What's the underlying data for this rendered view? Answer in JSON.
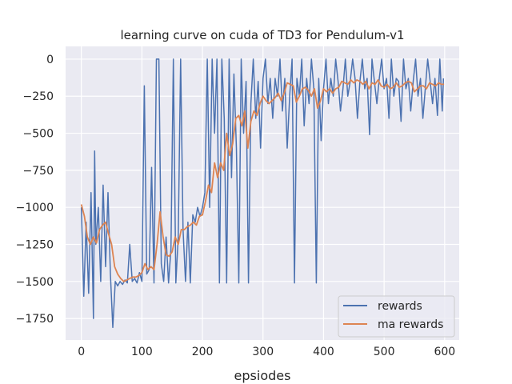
{
  "chart_data": {
    "type": "line",
    "title": "learning curve on cuda of TD3 for Pendulum-v1",
    "xlabel": "epsiodes",
    "ylabel": "",
    "xlim": [
      -26,
      624
    ],
    "ylim": [
      -1895,
      86
    ],
    "xticks": [
      0,
      100,
      200,
      300,
      400,
      500,
      600
    ],
    "yticks": [
      0,
      -250,
      -500,
      -750,
      -1000,
      -1250,
      -1500,
      -1750
    ],
    "grid": true,
    "legend": "bottom-right",
    "series": [
      {
        "name": "rewards",
        "color": "#4c72b0",
        "x": [
          0,
          4,
          8,
          12,
          16,
          20,
          22,
          24,
          28,
          32,
          36,
          40,
          44,
          48,
          52,
          56,
          60,
          64,
          68,
          72,
          76,
          80,
          84,
          88,
          92,
          96,
          100,
          104,
          108,
          112,
          116,
          120,
          124,
          128,
          132,
          136,
          140,
          144,
          148,
          152,
          156,
          160,
          164,
          168,
          172,
          176,
          180,
          184,
          188,
          192,
          196,
          200,
          204,
          208,
          212,
          216,
          220,
          224,
          228,
          232,
          236,
          240,
          244,
          248,
          252,
          256,
          260,
          264,
          268,
          272,
          276,
          280,
          284,
          288,
          292,
          296,
          300,
          304,
          308,
          312,
          316,
          320,
          324,
          328,
          332,
          336,
          340,
          344,
          348,
          352,
          356,
          360,
          364,
          368,
          372,
          376,
          380,
          384,
          388,
          392,
          396,
          400,
          404,
          408,
          412,
          416,
          420,
          424,
          428,
          432,
          436,
          440,
          444,
          448,
          452,
          456,
          460,
          464,
          468,
          472,
          476,
          480,
          484,
          488,
          492,
          496,
          500,
          504,
          508,
          512,
          516,
          520,
          524,
          528,
          532,
          536,
          540,
          544,
          548,
          552,
          556,
          560,
          564,
          568,
          572,
          576,
          580,
          584,
          588,
          592,
          596,
          598
        ],
        "y": [
          -1000,
          -1600,
          -1100,
          -1580,
          -900,
          -1750,
          -620,
          -1250,
          -1000,
          -1500,
          -850,
          -1400,
          -900,
          -1450,
          -1810,
          -1500,
          -1530,
          -1500,
          -1520,
          -1490,
          -1510,
          -1250,
          -1500,
          -1480,
          -1510,
          -1440,
          -1500,
          -180,
          -1450,
          -1420,
          -730,
          -1510,
          0,
          0,
          -1380,
          -1500,
          -1200,
          -1510,
          -1280,
          0,
          -1510,
          -1200,
          0,
          -1150,
          -1500,
          -1100,
          -1510,
          -1050,
          -1100,
          -1000,
          -1060,
          -1000,
          -900,
          0,
          -1000,
          0,
          -500,
          0,
          -1510,
          0,
          -400,
          -1510,
          0,
          -800,
          -100,
          -600,
          -1510,
          0,
          -500,
          -150,
          -1510,
          -300,
          0,
          -400,
          -150,
          -600,
          -130,
          0,
          -300,
          -130,
          -400,
          -130,
          -250,
          0,
          -350,
          -130,
          -600,
          -250,
          0,
          -1510,
          -130,
          -250,
          0,
          -450,
          -130,
          -300,
          0,
          -200,
          -1510,
          -130,
          -550,
          -200,
          0,
          -300,
          -130,
          -250,
          0,
          -150,
          -350,
          -200,
          0,
          -250,
          -150,
          0,
          -130,
          -400,
          -150,
          0,
          -200,
          -130,
          -510,
          0,
          -150,
          -300,
          -130,
          0,
          -200,
          -130,
          -400,
          0,
          -250,
          -130,
          -150,
          -420,
          0,
          -200,
          -130,
          -350,
          -150,
          0,
          -250,
          -130,
          -400,
          -200,
          0,
          -150,
          -300,
          -130,
          -380,
          0,
          -350,
          -130
        ]
      },
      {
        "name": "ma rewards",
        "color": "#dd8452",
        "x": [
          0,
          5,
          10,
          15,
          20,
          25,
          30,
          35,
          40,
          45,
          50,
          55,
          60,
          65,
          70,
          75,
          80,
          85,
          90,
          95,
          100,
          105,
          110,
          115,
          120,
          125,
          130,
          135,
          140,
          145,
          150,
          155,
          160,
          165,
          170,
          175,
          180,
          185,
          190,
          195,
          200,
          205,
          210,
          215,
          220,
          225,
          230,
          235,
          240,
          245,
          250,
          255,
          260,
          265,
          270,
          275,
          280,
          285,
          290,
          295,
          300,
          305,
          310,
          315,
          320,
          325,
          330,
          335,
          340,
          345,
          350,
          355,
          360,
          365,
          370,
          375,
          380,
          385,
          390,
          395,
          400,
          405,
          410,
          415,
          420,
          425,
          430,
          435,
          440,
          445,
          450,
          455,
          460,
          465,
          470,
          475,
          480,
          485,
          490,
          495,
          500,
          505,
          510,
          515,
          520,
          525,
          530,
          535,
          540,
          545,
          550,
          555,
          560,
          565,
          570,
          575,
          580,
          585,
          590,
          595,
          599
        ],
        "y": [
          -980,
          -1060,
          -1200,
          -1250,
          -1200,
          -1240,
          -1150,
          -1120,
          -1100,
          -1180,
          -1250,
          -1400,
          -1450,
          -1480,
          -1500,
          -1490,
          -1480,
          -1470,
          -1470,
          -1460,
          -1440,
          -1380,
          -1420,
          -1400,
          -1420,
          -1250,
          -1030,
          -1200,
          -1320,
          -1330,
          -1300,
          -1200,
          -1250,
          -1150,
          -1150,
          -1130,
          -1120,
          -1100,
          -1120,
          -1060,
          -1050,
          -960,
          -850,
          -900,
          -700,
          -800,
          -700,
          -750,
          -500,
          -650,
          -570,
          -400,
          -380,
          -450,
          -350,
          -600,
          -420,
          -350,
          -380,
          -300,
          -250,
          -280,
          -300,
          -280,
          -260,
          -230,
          -280,
          -230,
          -160,
          -170,
          -180,
          -290,
          -250,
          -200,
          -190,
          -210,
          -250,
          -200,
          -330,
          -280,
          -200,
          -220,
          -200,
          -230,
          -200,
          -190,
          -150,
          -160,
          -170,
          -140,
          -160,
          -140,
          -150,
          -170,
          -150,
          -200,
          -160,
          -170,
          -140,
          -180,
          -190,
          -170,
          -200,
          -190,
          -160,
          -190,
          -180,
          -160,
          -150,
          -160,
          -220,
          -200,
          -180,
          -180,
          -200,
          -160,
          -170,
          -180,
          -160,
          -170,
          -170
        ]
      }
    ]
  },
  "tick_labels": {
    "x": [
      "0",
      "100",
      "200",
      "300",
      "400",
      "500",
      "600"
    ],
    "y": [
      "0",
      "−250",
      "−500",
      "−750",
      "−1000",
      "−1250",
      "−1500",
      "−1750"
    ]
  }
}
